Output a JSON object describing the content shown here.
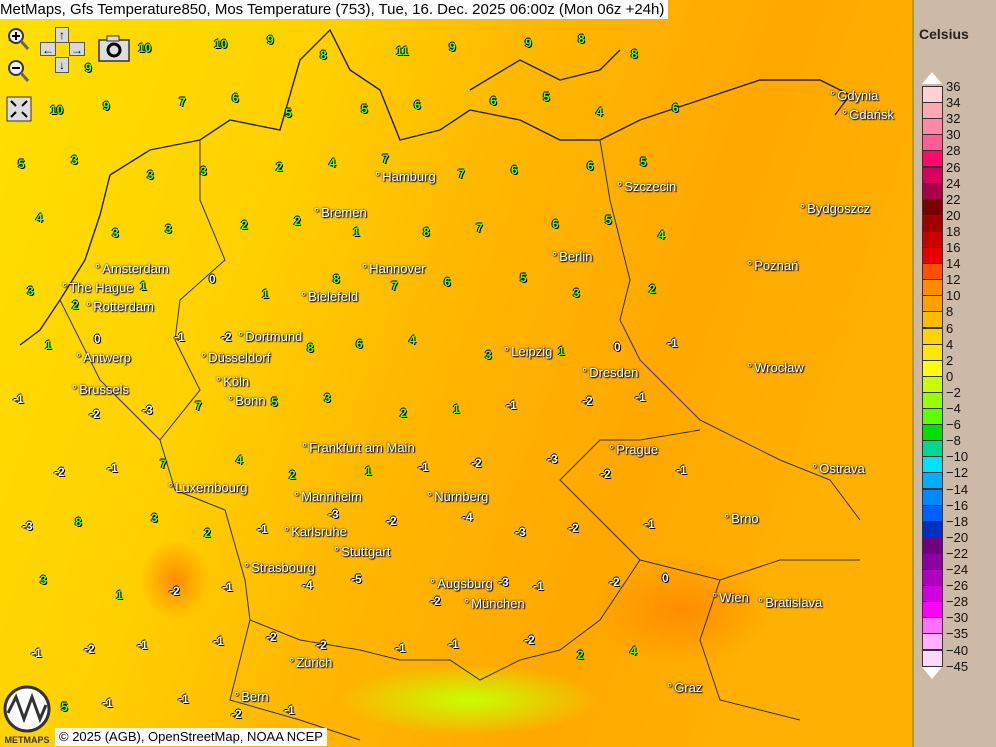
{
  "title": "MetMaps, Gfs Temperature850, Mos Temperature (753), Tue, 16. Dec. 2025 06:00z (Mon 06z +24h)",
  "controls": {
    "zoom_in": "zoom-in",
    "zoom_out": "zoom-out",
    "pan_up": "↑",
    "pan_down": "↓",
    "pan_left": "←",
    "pan_right": "→",
    "snapshot": "camera",
    "fullscreen": "expand"
  },
  "legend": {
    "title": "Celsius",
    "labels": [
      "36",
      "34",
      "32",
      "30",
      "28",
      "26",
      "24",
      "22",
      "20",
      "18",
      "16",
      "14",
      "12",
      "10",
      "8",
      "6",
      "4",
      "2",
      "0",
      "−2",
      "−4",
      "−6",
      "−8",
      "−10",
      "−12",
      "−14",
      "−16",
      "−18",
      "−20",
      "−22",
      "−24",
      "−26",
      "−28",
      "−30",
      "−35",
      "−40",
      "−45"
    ],
    "colors": [
      "#ffd0d8",
      "#ffa8b4",
      "#ff88a8",
      "#ff5c98",
      "#ff0a6a",
      "#d8005c",
      "#a8004a",
      "#7a0000",
      "#a00000",
      "#c80000",
      "#e80000",
      "#ff5000",
      "#ff8c00",
      "#ffa200",
      "#ffbc00",
      "#ffd400",
      "#ffe800",
      "#ffff00",
      "#c8ff00",
      "#98ff00",
      "#60ff00",
      "#00e000",
      "#00d890",
      "#00e0ff",
      "#00b0ff",
      "#0088ff",
      "#0060ff",
      "#0030c0",
      "#700080",
      "#8a00a0",
      "#b000c0",
      "#d000e0",
      "#ff00ff",
      "#ff70ff",
      "#ffb0ff",
      "#ffd8ff"
    ]
  },
  "cities": [
    "Gdynia",
    "Gdańsk",
    "Hamburg",
    "Szczecin",
    "Bremen",
    "Bydgoszcz",
    "Amsterdam",
    "Hannover",
    "Berlin",
    "Poznań",
    "The Hague",
    "Rotterdam",
    "Bielefeld",
    "Dortmund",
    "Antwerp",
    "Düsseldorf",
    "Leipzig",
    "Wrocław",
    "Dresden",
    "Brussels",
    "Köln",
    "Bonn",
    "Frankfurt am Main",
    "Prague",
    "Ostrava",
    "Luxembourg",
    "Mannheim",
    "Nürnberg",
    "Brno",
    "Karlsruhe",
    "Stuttgart",
    "Strasbourg",
    "Augsburg",
    "Wien",
    "Bratislava",
    "München",
    "Zürich",
    "Graz",
    "Bern"
  ],
  "station_values": [
    "10",
    "9",
    "10",
    "10",
    "9",
    "8",
    "11",
    "9",
    "9",
    "8",
    "8",
    "10",
    "9",
    "7",
    "6",
    "5",
    "5",
    "6",
    "6",
    "5",
    "4",
    "6",
    "5",
    "3",
    "3",
    "3",
    "2",
    "4",
    "7",
    "7",
    "6",
    "6",
    "5",
    "4",
    "3",
    "3",
    "2",
    "2",
    "1",
    "8",
    "7",
    "6",
    "5",
    "4",
    "3",
    "2",
    "1",
    "0",
    "1",
    "8",
    "7",
    "6",
    "5",
    "3",
    "2",
    "1",
    "0",
    "-1",
    "-2",
    "8",
    "6",
    "4",
    "3",
    "1",
    "0",
    "-1",
    "-1",
    "-2",
    "-3",
    "7",
    "5",
    "3",
    "2",
    "1",
    "-1",
    "-2",
    "-1",
    "-2",
    "-1",
    "7",
    "4",
    "2",
    "1",
    "-1",
    "-2",
    "-3",
    "-2",
    "-1",
    "-3",
    "8",
    "3",
    "2",
    "-1",
    "-3",
    "-2",
    "-4",
    "-3",
    "-2",
    "-1",
    "3",
    "1",
    "-2",
    "-1",
    "-4",
    "-5",
    "-2",
    "-3",
    "-1",
    "-2",
    "0",
    "-1",
    "-2",
    "-1",
    "-1",
    "-2",
    "-2",
    "-1",
    "-1",
    "-2",
    "2",
    "4",
    "5",
    "-1",
    "-1",
    "-2",
    "-1"
  ],
  "credit": "© 2025 (AGB), OpenStreetMap, NOAA NCEP",
  "logo_text": "METMAPS"
}
